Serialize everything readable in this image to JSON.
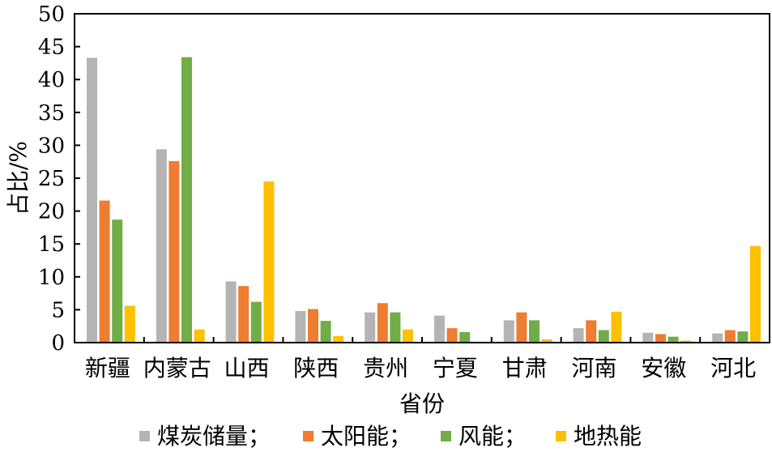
{
  "chart_data": {
    "type": "bar",
    "title": "",
    "xlabel": "省份",
    "ylabel": "占比/%",
    "ylim": [
      0,
      50
    ],
    "yticks": [
      0,
      5,
      10,
      15,
      20,
      25,
      30,
      35,
      40,
      45,
      50
    ],
    "grid": false,
    "legend_position": "bottom",
    "categories": [
      "新疆",
      "内蒙古",
      "山西",
      "陕西",
      "贵州",
      "宁夏",
      "甘肃",
      "河南",
      "安徽",
      "河北"
    ],
    "series": [
      {
        "name": "煤炭储量；",
        "color": "#b4b4b4",
        "values": [
          43.3,
          29.4,
          9.3,
          4.8,
          4.6,
          4.1,
          3.4,
          2.2,
          1.5,
          1.4
        ]
      },
      {
        "name": "太阳能；",
        "color": "#ed7d31",
        "values": [
          21.6,
          27.6,
          8.6,
          5.1,
          6.0,
          2.2,
          4.6,
          3.4,
          1.3,
          1.9
        ]
      },
      {
        "name": "风能；",
        "color": "#70ad47",
        "values": [
          18.7,
          43.4,
          6.2,
          3.3,
          4.6,
          1.6,
          3.4,
          1.9,
          0.9,
          1.7
        ]
      },
      {
        "name": "地热能",
        "color": "#ffc000",
        "values": [
          5.6,
          2.0,
          24.5,
          1.0,
          2.0,
          0.0,
          0.5,
          4.7,
          0.3,
          14.7
        ]
      }
    ]
  }
}
